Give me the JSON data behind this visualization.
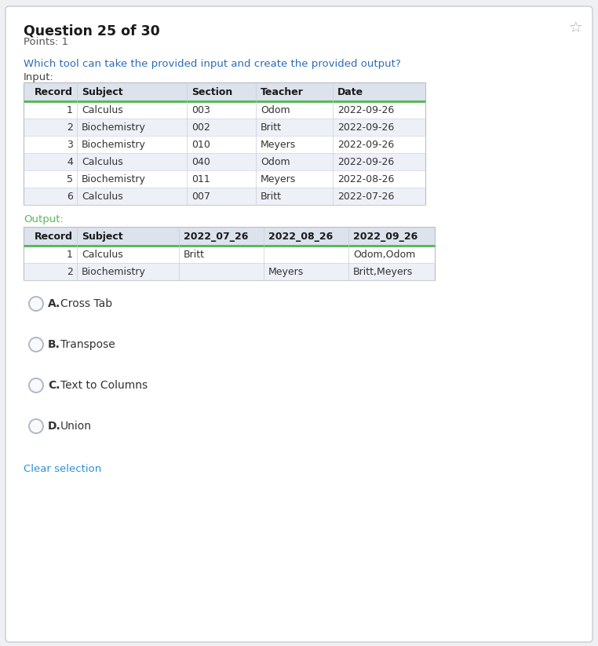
{
  "title": "Question 25 of 30",
  "points": "Points: 1",
  "question": "Which tool can take the provided input and create the provided output?",
  "input_label": "Input:",
  "output_label": "Output:",
  "input_headers": [
    "Record",
    "Subject",
    "Section",
    "Teacher",
    "Date"
  ],
  "input_rows": [
    [
      "1",
      "Calculus",
      "003",
      "Odom",
      "2022-09-26"
    ],
    [
      "2",
      "Biochemistry",
      "002",
      "Britt",
      "2022-09-26"
    ],
    [
      "3",
      "Biochemistry",
      "010",
      "Meyers",
      "2022-09-26"
    ],
    [
      "4",
      "Calculus",
      "040",
      "Odom",
      "2022-09-26"
    ],
    [
      "5",
      "Biochemistry",
      "011",
      "Meyers",
      "2022-08-26"
    ],
    [
      "6",
      "Calculus",
      "007",
      "Britt",
      "2022-07-26"
    ]
  ],
  "output_headers": [
    "Record",
    "Subject",
    "2022_07_26",
    "2022_08_26",
    "2022_09_26"
  ],
  "output_rows": [
    [
      "1",
      "Calculus",
      "Britt",
      "",
      "Odom,Odom"
    ],
    [
      "2",
      "Biochemistry",
      "",
      "Meyers",
      "Britt,Meyers"
    ]
  ],
  "options": [
    {
      "letter": "A.",
      "text": "Cross Tab"
    },
    {
      "letter": "B.",
      "text": "Transpose"
    },
    {
      "letter": "C.",
      "text": "Text to Columns"
    },
    {
      "letter": "D.",
      "text": "Union"
    }
  ],
  "clear_selection": "Clear selection",
  "bg_color": "#eef0f3",
  "card_color": "#ffffff",
  "table_header_bg": "#dde3ed",
  "table_row_even_bg": "#edf0f7",
  "table_row_odd_bg": "#ffffff",
  "green_line_color": "#5cb85c",
  "title_color": "#1a1a1a",
  "points_color": "#555555",
  "question_color": "#2d6db5",
  "input_label_color": "#444444",
  "output_label_color": "#5cb85c",
  "option_text_color": "#333333",
  "clear_color": "#2d8fd5",
  "header_text_color": "#1a1a1a",
  "cell_text_color": "#333333",
  "radio_border_color": "#b0b8c8",
  "radio_fill_color": "#f8f9fb",
  "bookmark_color": "#aaaaaa",
  "col_divider_color": "#c8cdd8",
  "row_divider_color": "#d0d5e0",
  "table_border_color": "#b8bcc8"
}
